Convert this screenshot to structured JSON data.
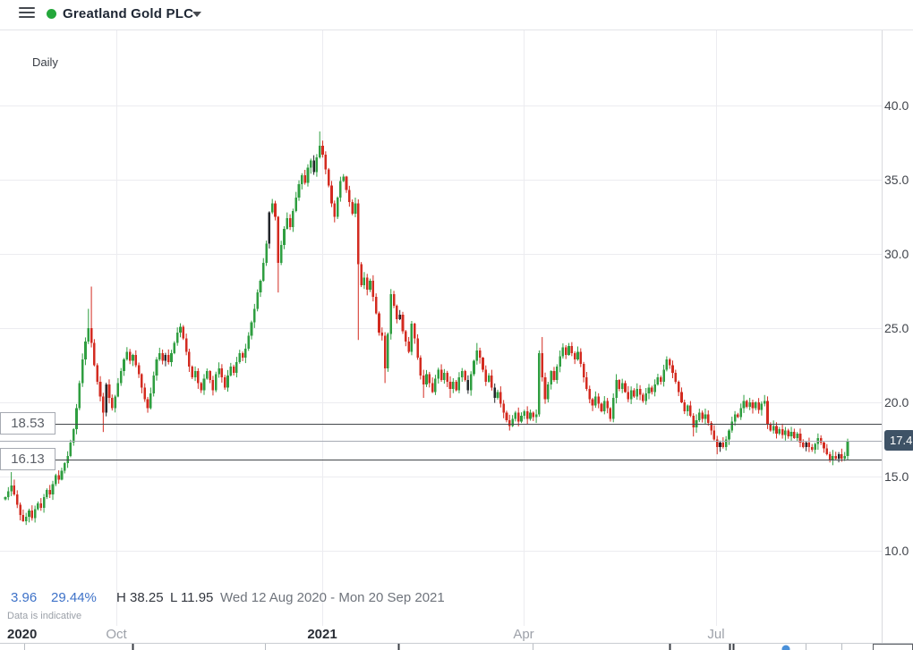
{
  "header": {
    "title": "Greatland Gold PLC"
  },
  "chart": {
    "interval_label": "Daily",
    "y_axis": {
      "values": [
        40,
        35,
        30,
        25,
        20,
        15,
        10
      ],
      "labels": [
        "40.0",
        "35.0",
        "30.0",
        "25.0",
        "20.0",
        "15.0",
        "10.0"
      ]
    },
    "x_axis": {
      "labels": [
        {
          "text": "2020",
          "x": 8,
          "bold": true,
          "align": "left"
        },
        {
          "text": "Oct",
          "x": 130,
          "bold": false,
          "align": "center"
        },
        {
          "text": "2021",
          "x": 360,
          "bold": true,
          "align": "center"
        },
        {
          "text": "Apr",
          "x": 585,
          "bold": false,
          "align": "center"
        },
        {
          "text": "Jul",
          "x": 800,
          "bold": false,
          "align": "center"
        }
      ],
      "gridlines_x": [
        130,
        360,
        585,
        800
      ]
    },
    "price_lines": [
      {
        "label": "18.53",
        "value": 18.53
      },
      {
        "label": "16.13",
        "value": 16.13
      }
    ],
    "current_price": {
      "label": "17.4",
      "value": 17.41
    },
    "colors": {
      "up": "#2f9e40",
      "down": "#d32b20",
      "black": "#23262b",
      "grid": "#ececf0",
      "level_line": "#43474b",
      "current_line": "#a6abb4",
      "badge": "#3e5266"
    }
  },
  "chart_data": {
    "type": "candlestick",
    "instrument": "Greatland Gold PLC",
    "interval": "Daily",
    "date_range": "Wed 12 Aug 2020 - Mon 20 Sep 2021",
    "period_change": 3.96,
    "period_change_pct": 29.44,
    "period_high": 38.25,
    "period_low": 11.95,
    "last_close": 17.41,
    "support_resistance_levels": [
      18.53,
      16.13
    ],
    "y_ticks": [
      10,
      15,
      20,
      25,
      30,
      35,
      40
    ],
    "open_first": 13.45,
    "closes": [
      13.6,
      14.0,
      14.4,
      13.8,
      13.1,
      12.4,
      12.0,
      12.3,
      12.7,
      12.2,
      12.8,
      13.2,
      12.9,
      13.6,
      14.1,
      13.8,
      14.5,
      15.1,
      14.8,
      15.4,
      15.9,
      16.4,
      17.3,
      18.2,
      19.6,
      21.3,
      22.9,
      24.1,
      25.0,
      24.0,
      22.5,
      21.4,
      20.4,
      19.3,
      21.2,
      20.3,
      19.6,
      20.4,
      21.3,
      22.1,
      22.9,
      23.4,
      22.8,
      23.2,
      22.5,
      21.9,
      21.0,
      20.2,
      19.6,
      20.6,
      21.8,
      22.9,
      23.3,
      22.8,
      23.2,
      22.7,
      23.3,
      24.0,
      24.7,
      25.1,
      24.3,
      23.4,
      22.4,
      21.7,
      22.1,
      21.3,
      20.8,
      21.6,
      22.1,
      21.5,
      20.8,
      21.9,
      22.3,
      21.7,
      21.0,
      21.8,
      22.4,
      22.0,
      22.7,
      23.3,
      23.0,
      23.6,
      24.5,
      25.4,
      26.3,
      27.4,
      28.2,
      29.4,
      30.7,
      32.8,
      33.4,
      32.5,
      29.4,
      30.6,
      31.7,
      32.4,
      31.8,
      32.9,
      33.8,
      34.7,
      35.3,
      34.8,
      35.8,
      36.3,
      35.5,
      36.5,
      37.3,
      36.7,
      35.7,
      34.6,
      33.4,
      32.5,
      33.8,
      34.9,
      35.2,
      34.3,
      33.5,
      32.7,
      33.4,
      29.3,
      27.9,
      28.4,
      27.6,
      28.2,
      27.1,
      26.0,
      24.7,
      24.5,
      22.3,
      24.6,
      27.3,
      26.5,
      25.6,
      25.9,
      24.8,
      24.1,
      23.4,
      25.3,
      24.3,
      23.0,
      21.8,
      21.2,
      21.9,
      21.3,
      20.7,
      21.6,
      22.2,
      21.5,
      22.0,
      21.4,
      20.9,
      21.4,
      20.8,
      21.7,
      22.1,
      21.5,
      20.8,
      21.9,
      22.8,
      23.5,
      23.0,
      22.2,
      21.4,
      21.8,
      21.0,
      20.3,
      20.7,
      19.9,
      19.3,
      18.8,
      18.4,
      18.9,
      19.3,
      18.7,
      19.1,
      19.4,
      18.9,
      19.3,
      19.0,
      19.2,
      23.3,
      21.7,
      20.2,
      21.2,
      22.1,
      21.5,
      22.4,
      23.1,
      23.7,
      23.2,
      23.8,
      23.3,
      22.9,
      23.4,
      22.6,
      21.7,
      20.9,
      20.2,
      19.8,
      20.4,
      19.9,
      19.4,
      20.1,
      19.6,
      18.9,
      20.3,
      21.5,
      20.9,
      21.3,
      20.7,
      20.2,
      20.8,
      20.4,
      20.9,
      20.5,
      20.1,
      20.6,
      21.0,
      20.7,
      21.2,
      21.7,
      21.4,
      22.2,
      22.9,
      22.5,
      22.0,
      21.4,
      20.7,
      20.0,
      19.4,
      19.8,
      19.1,
      18.3,
      18.8,
      19.3,
      18.9,
      19.2,
      18.6,
      18.1,
      17.5,
      17.0,
      17.3,
      17.0,
      17.5,
      18.1,
      18.7,
      19.2,
      19.0,
      19.6,
      20.1,
      19.7,
      20.0,
      19.6,
      20.0,
      19.5,
      19.9,
      20.1,
      18.5,
      18.1,
      18.4,
      17.9,
      18.2,
      17.8,
      18.1,
      17.7,
      18.0,
      17.6,
      17.9,
      17.3,
      17.0,
      17.3,
      17.0,
      16.8,
      17.2,
      17.6,
      17.3,
      16.9,
      16.5,
      16.1,
      16.4,
      16.2,
      16.5,
      16.2,
      16.4,
      17.41
    ],
    "high_overrides": {
      "2": 15.3,
      "28": 26.3,
      "29": 27.8,
      "106": 38.25,
      "159": 24.0,
      "181": 24.4,
      "190": 24.0,
      "206": 21.9,
      "223": 23.1,
      "249": 20.5,
      "257": 20.4,
      "284": 17.55
    },
    "low_overrides": {
      "6": 11.95,
      "33": 18.0,
      "48": 19.3,
      "92": 27.4,
      "119": 24.2,
      "128": 21.3,
      "141": 20.3,
      "150": 20.3,
      "170": 18.1,
      "182": 19.9,
      "204": 18.7,
      "232": 17.7,
      "240": 16.5,
      "270": 16.7,
      "278": 15.95,
      "282": 16.0
    },
    "black_candle_indices": [
      34,
      54,
      89,
      104,
      133,
      156,
      165,
      241,
      270,
      281
    ]
  },
  "footer": {
    "change": "3.96",
    "change_pct": "29.44%",
    "high": "H 38.25",
    "low": "L 11.95",
    "range": "Wed 12 Aug 2020 - Mon 20 Sep 2021",
    "disclaimer": "Data is indicative"
  }
}
